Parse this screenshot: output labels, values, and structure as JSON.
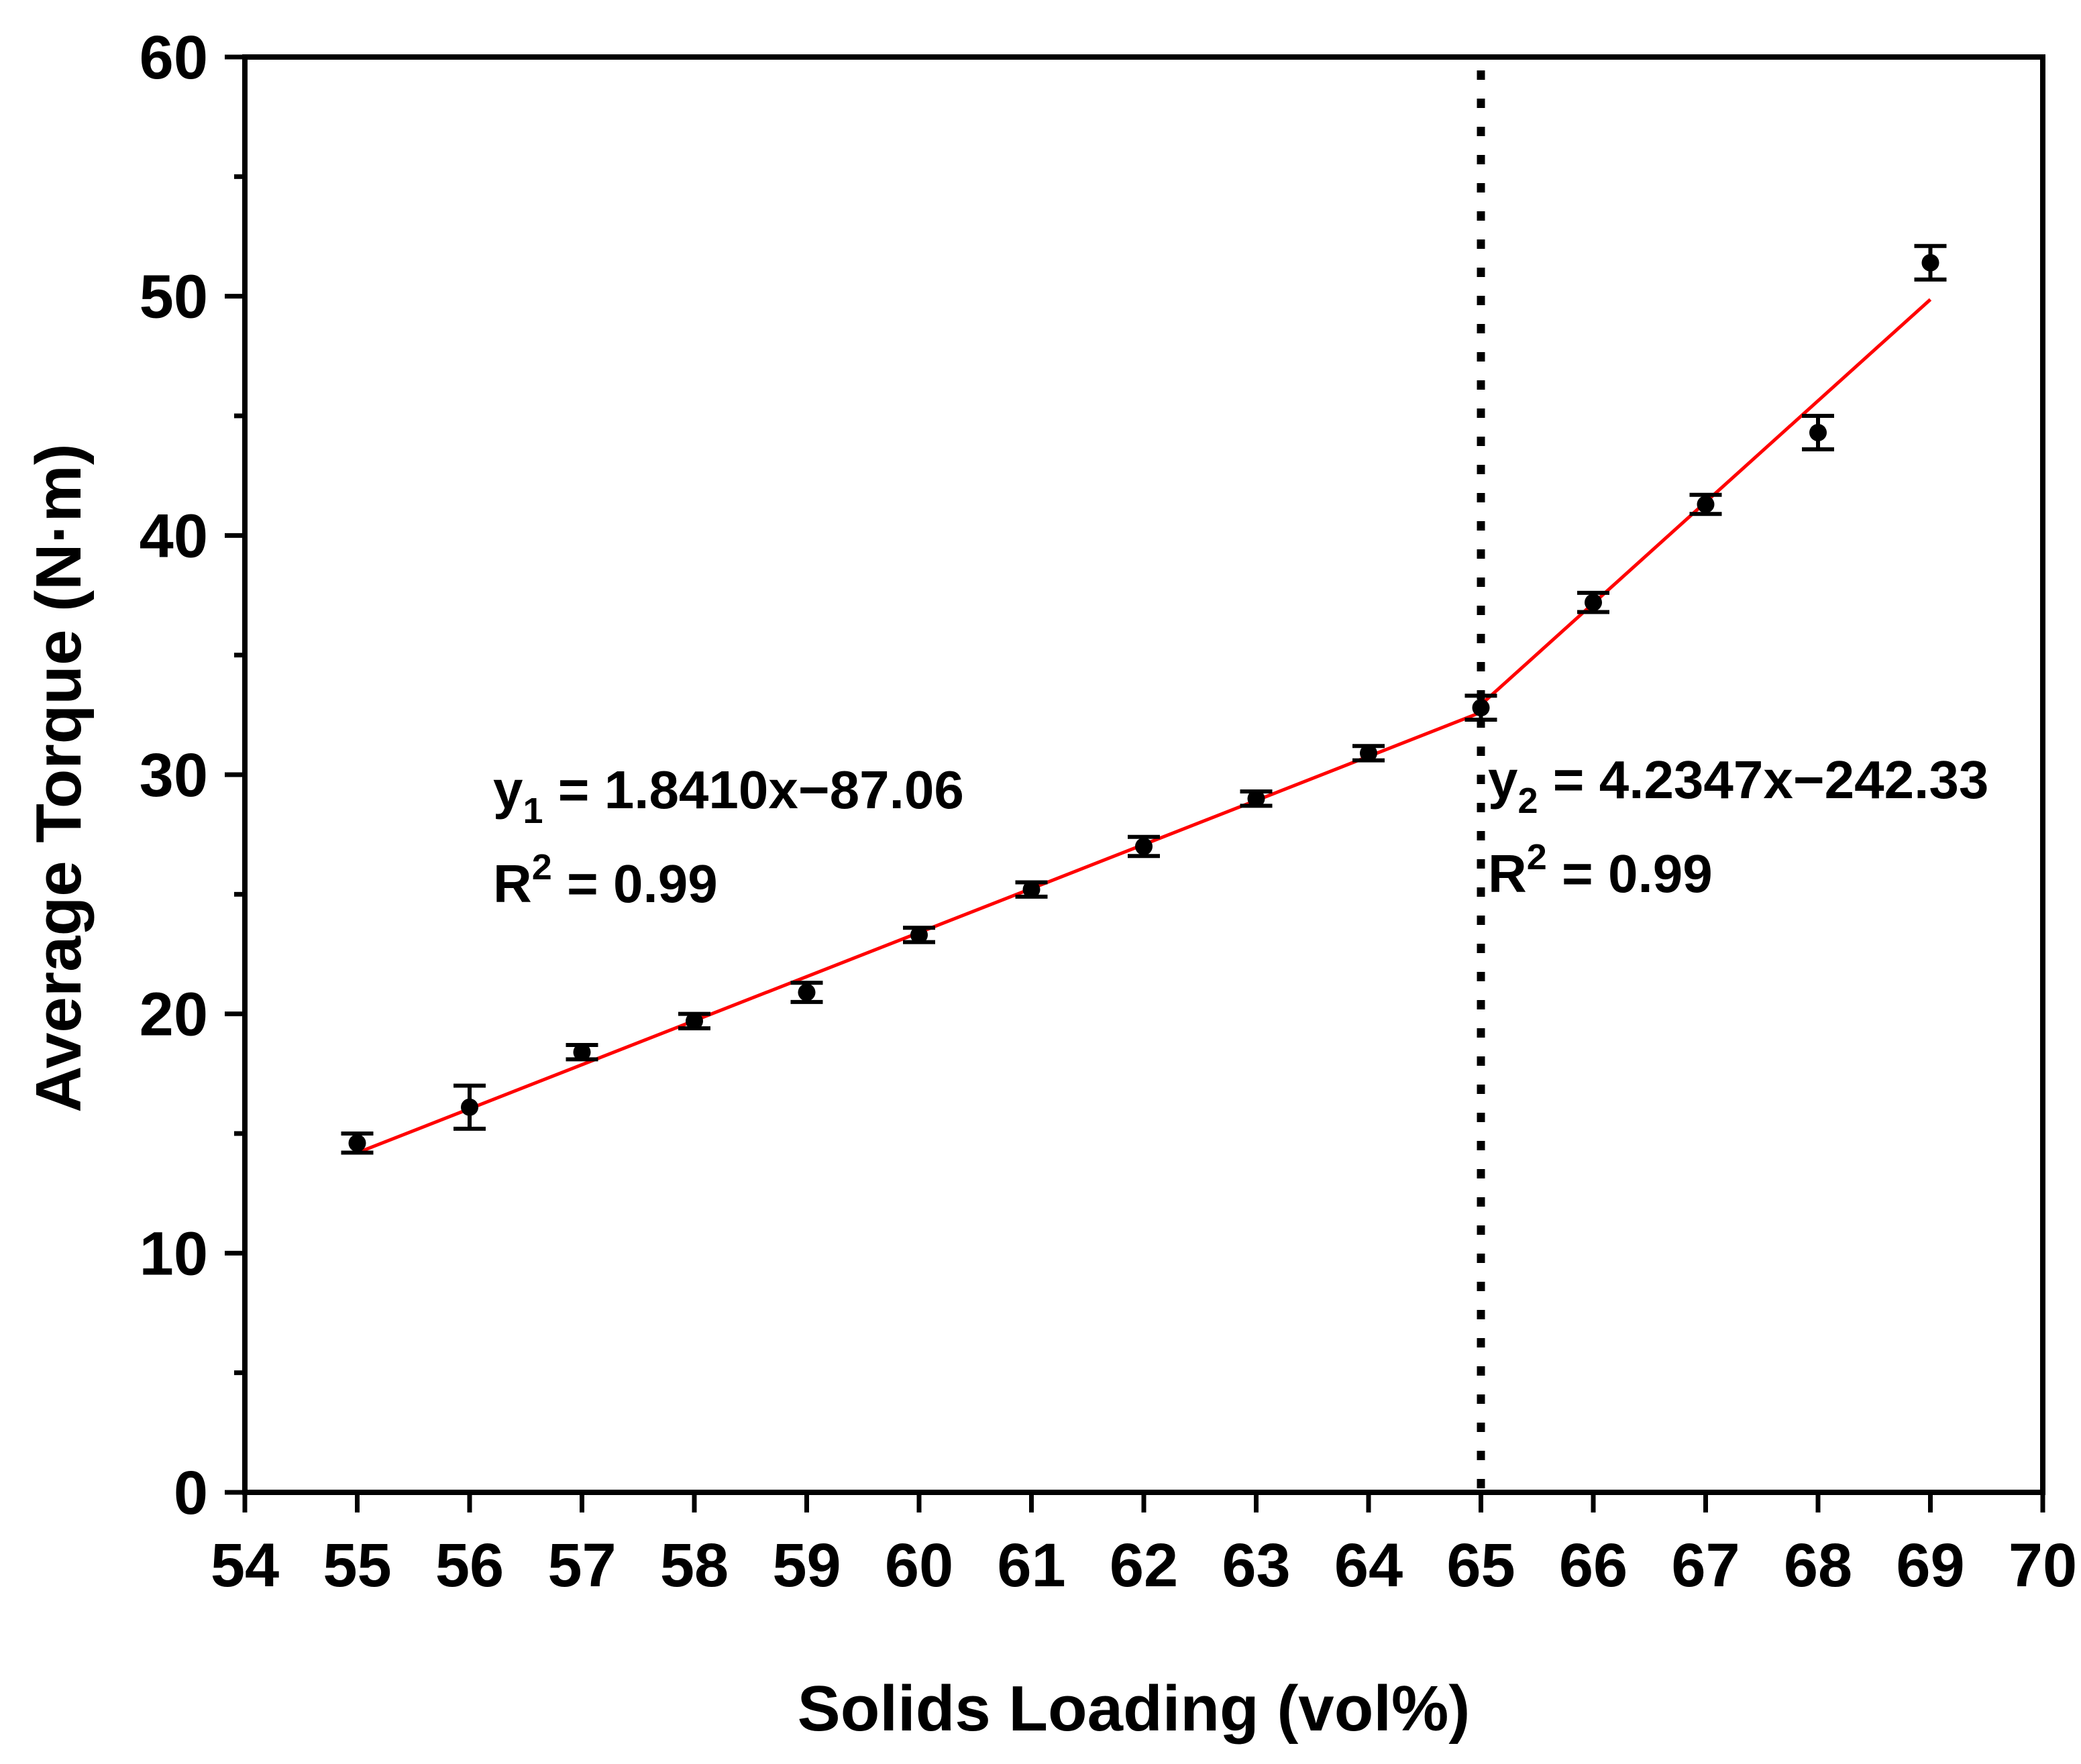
{
  "chart_data": {
    "type": "scatter",
    "title": "",
    "xlabel": "Solids Loading (vol%)",
    "ylabel": "Average Torque (N·m)",
    "xlim": [
      54,
      70
    ],
    "ylim": [
      0,
      60
    ],
    "xticks": [
      54,
      55,
      56,
      57,
      58,
      59,
      60,
      61,
      62,
      63,
      64,
      65,
      66,
      67,
      68,
      69,
      70
    ],
    "yticks": [
      0,
      10,
      20,
      30,
      40,
      50,
      60
    ],
    "grid": false,
    "legend": "none",
    "series": [
      {
        "x": [
          55,
          56,
          57,
          58,
          59,
          60,
          61,
          62,
          63,
          64,
          65,
          66,
          67,
          68,
          69
        ],
        "y": [
          14.6,
          16.1,
          18.4,
          19.7,
          20.9,
          23.3,
          25.2,
          27.0,
          29.0,
          30.9,
          32.8,
          37.2,
          41.3,
          44.3,
          51.4
        ],
        "err": [
          0.4,
          0.9,
          0.3,
          0.3,
          0.4,
          0.3,
          0.3,
          0.4,
          0.3,
          0.3,
          0.5,
          0.4,
          0.4,
          0.7,
          0.7
        ]
      }
    ],
    "fits": [
      {
        "x_range": [
          55,
          65
        ],
        "slope": 1.841,
        "intercept": -87.06,
        "eq_var": "y",
        "eq_sub": "1",
        "eq_rest": " = 1.8410x−87.06",
        "r2_base": "R",
        "r2_sup": "2",
        "r2_rest": " = 0.99"
      },
      {
        "x_range": [
          65,
          69
        ],
        "slope": 4.2347,
        "intercept": -242.33,
        "eq_var": "y",
        "eq_sub": "2",
        "eq_rest": " = 4.2347x−242.33",
        "r2_base": "R",
        "r2_sup": "2",
        "r2_rest": " = 0.99"
      }
    ],
    "vline_x": 65,
    "colors": {
      "fit": "#ff0000",
      "points": "#000000",
      "axes": "#000000"
    }
  }
}
